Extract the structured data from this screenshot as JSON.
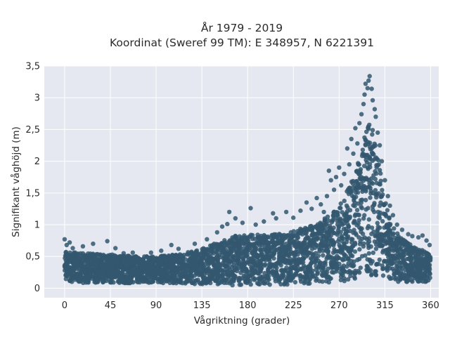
{
  "chart_data": {
    "type": "scatter",
    "title": "År 1979 - 2019",
    "subtitle": "Koordinat (Sweref 99 TM): E 348957, N 6221391",
    "xlabel": "Vågriktning (grader)",
    "ylabel": "Signifikant våghöjd (m)",
    "xlim": [
      -20,
      368
    ],
    "ylim": [
      -0.15,
      3.5
    ],
    "x_ticks": [
      0,
      45,
      90,
      135,
      180,
      225,
      270,
      315,
      360
    ],
    "x_tick_labels": [
      "0",
      "45",
      "90",
      "135",
      "180",
      "225",
      "270",
      "315",
      "360"
    ],
    "y_ticks": [
      0,
      0.5,
      1,
      1.5,
      2,
      2.5,
      3,
      3.5
    ],
    "y_tick_labels": [
      "0",
      "0,5",
      "1",
      "1,5",
      "2",
      "2,5",
      "3",
      "3,5"
    ],
    "grid": true,
    "marker_color": "#33576e",
    "background_color": "#e5e8f0",
    "envelope": {
      "x": [
        0,
        20,
        45,
        70,
        90,
        110,
        135,
        150,
        165,
        180,
        200,
        225,
        245,
        260,
        270,
        280,
        288,
        294,
        298,
        300,
        303,
        307,
        312,
        318,
        325,
        335,
        345,
        360
      ],
      "y_top": [
        0.58,
        0.55,
        0.53,
        0.5,
        0.5,
        0.53,
        0.62,
        0.72,
        0.82,
        0.84,
        0.84,
        0.9,
        1.0,
        1.15,
        1.3,
        1.6,
        2.0,
        2.35,
        2.55,
        2.6,
        2.5,
        2.2,
        1.7,
        1.2,
        0.9,
        0.75,
        0.65,
        0.55
      ],
      "y_bottom": [
        0.1,
        0.08,
        0.08,
        0.08,
        0.08,
        0.08,
        0.06,
        0.05,
        0.04,
        0.04,
        0.05,
        0.06,
        0.07,
        0.08,
        0.09,
        0.1,
        0.1,
        0.1,
        0.1,
        0.1,
        0.1,
        0.1,
        0.1,
        0.1,
        0.1,
        0.1,
        0.1,
        0.1
      ]
    },
    "outliers": [
      {
        "x": 0,
        "y": 0.77
      },
      {
        "x": 2,
        "y": 0.68
      },
      {
        "x": 5,
        "y": 0.72
      },
      {
        "x": 8,
        "y": 0.63
      },
      {
        "x": 18,
        "y": 0.66
      },
      {
        "x": 28,
        "y": 0.7
      },
      {
        "x": 42,
        "y": 0.74
      },
      {
        "x": 50,
        "y": 0.63
      },
      {
        "x": 58,
        "y": 0.55
      },
      {
        "x": 67,
        "y": 0.56
      },
      {
        "x": 85,
        "y": 0.56
      },
      {
        "x": 95,
        "y": 0.59
      },
      {
        "x": 105,
        "y": 0.68
      },
      {
        "x": 112,
        "y": 0.62
      },
      {
        "x": 128,
        "y": 0.7
      },
      {
        "x": 140,
        "y": 0.77
      },
      {
        "x": 150,
        "y": 0.88
      },
      {
        "x": 155,
        "y": 0.97
      },
      {
        "x": 160,
        "y": 1.01
      },
      {
        "x": 162,
        "y": 1.2
      },
      {
        "x": 168,
        "y": 1.1
      },
      {
        "x": 175,
        "y": 1.03
      },
      {
        "x": 183,
        "y": 1.26
      },
      {
        "x": 188,
        "y": 1.0
      },
      {
        "x": 196,
        "y": 1.05
      },
      {
        "x": 205,
        "y": 1.18
      },
      {
        "x": 208,
        "y": 1.1
      },
      {
        "x": 218,
        "y": 1.2
      },
      {
        "x": 225,
        "y": 1.11
      },
      {
        "x": 232,
        "y": 1.22
      },
      {
        "x": 238,
        "y": 1.35
      },
      {
        "x": 243,
        "y": 1.25
      },
      {
        "x": 248,
        "y": 1.42
      },
      {
        "x": 252,
        "y": 1.32
      },
      {
        "x": 255,
        "y": 1.2
      },
      {
        "x": 258,
        "y": 1.45
      },
      {
        "x": 260,
        "y": 1.85
      },
      {
        "x": 262,
        "y": 1.7
      },
      {
        "x": 265,
        "y": 1.55
      },
      {
        "x": 267,
        "y": 1.75
      },
      {
        "x": 270,
        "y": 1.9
      },
      {
        "x": 272,
        "y": 1.62
      },
      {
        "x": 275,
        "y": 1.8
      },
      {
        "x": 278,
        "y": 2.2
      },
      {
        "x": 280,
        "y": 1.95
      },
      {
        "x": 282,
        "y": 2.35
      },
      {
        "x": 284,
        "y": 2.12
      },
      {
        "x": 286,
        "y": 2.52
      },
      {
        "x": 288,
        "y": 2.28
      },
      {
        "x": 290,
        "y": 2.6
      },
      {
        "x": 292,
        "y": 2.74
      },
      {
        "x": 294,
        "y": 2.9
      },
      {
        "x": 295,
        "y": 3.05
      },
      {
        "x": 296,
        "y": 3.22
      },
      {
        "x": 298,
        "y": 3.15
      },
      {
        "x": 299,
        "y": 3.27
      },
      {
        "x": 300,
        "y": 3.34
      },
      {
        "x": 302,
        "y": 3.14
      },
      {
        "x": 303,
        "y": 2.96
      },
      {
        "x": 305,
        "y": 2.82
      },
      {
        "x": 306,
        "y": 2.7
      },
      {
        "x": 308,
        "y": 2.45
      },
      {
        "x": 310,
        "y": 2.25
      },
      {
        "x": 312,
        "y": 2.0
      },
      {
        "x": 315,
        "y": 1.7
      },
      {
        "x": 318,
        "y": 1.45
      },
      {
        "x": 320,
        "y": 1.3
      },
      {
        "x": 323,
        "y": 1.15
      },
      {
        "x": 327,
        "y": 1.0
      },
      {
        "x": 332,
        "y": 0.92
      },
      {
        "x": 338,
        "y": 0.85
      },
      {
        "x": 342,
        "y": 0.82
      },
      {
        "x": 348,
        "y": 0.8
      },
      {
        "x": 352,
        "y": 0.83
      },
      {
        "x": 356,
        "y": 0.75
      },
      {
        "x": 359,
        "y": 0.68
      }
    ]
  }
}
